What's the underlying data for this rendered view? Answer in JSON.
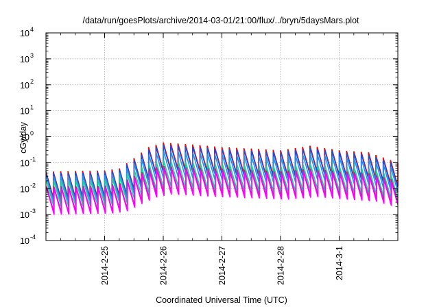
{
  "chart_data": {
    "type": "line",
    "title": "/data/run/goesPlots/archive/2014-03-01/21:00/flux/../bryn/5daysMars.plot",
    "xlabel": "Coordinated Universal Time (UTC)",
    "ylabel": "cGy/day",
    "xlim": [
      "2014-02-24T00:00",
      "2014-03-02T00:00"
    ],
    "ylim": [
      0.0001,
      10000
    ],
    "yscale": "log",
    "grid": true,
    "legend": "none",
    "ytick_labels": [
      {
        "base": "10",
        "exp": "-4"
      },
      {
        "base": "10",
        "exp": "-3"
      },
      {
        "base": "10",
        "exp": "-2"
      },
      {
        "base": "10",
        "exp": "-1"
      },
      {
        "base": "10",
        "exp": "0"
      },
      {
        "base": "10",
        "exp": "1"
      },
      {
        "base": "10",
        "exp": "2"
      },
      {
        "base": "10",
        "exp": "3"
      },
      {
        "base": "10",
        "exp": "4"
      }
    ],
    "xtick_labels": [
      "2014-2-25",
      "2014-2-26",
      "2014-2-27",
      "2014-2-28",
      "2014-3-1"
    ],
    "xticks": [
      "2014-02-25T00:00",
      "2014-02-26T00:00",
      "2014-02-27T00:00",
      "2014-02-28T00:00",
      "2014-03-01T00:00"
    ],
    "sawtooth_period_hours": 3,
    "sawtooth_amplitude_decades": 1.0,
    "envelope_times": [
      "2014-02-24T00:00",
      "2014-02-25T00:00",
      "2014-02-25T06:00",
      "2014-02-25T12:00",
      "2014-02-25T18:00",
      "2014-02-26T00:00",
      "2014-02-26T12:00",
      "2014-02-27T00:00",
      "2014-02-27T12:00",
      "2014-02-28T00:00",
      "2014-02-28T12:00",
      "2014-03-01T00:00",
      "2014-03-01T12:00",
      "2014-03-02T00:00"
    ],
    "series": [
      {
        "color": "#ff0000",
        "peaks": [
          0.045,
          0.05,
          0.06,
          0.15,
          0.4,
          0.6,
          0.5,
          0.4,
          0.35,
          0.3,
          0.45,
          0.3,
          0.25,
          0.1
        ]
      },
      {
        "color": "#1f4fd0",
        "peaks": [
          0.04,
          0.045,
          0.055,
          0.13,
          0.34,
          0.5,
          0.42,
          0.34,
          0.3,
          0.26,
          0.38,
          0.26,
          0.21,
          0.085
        ]
      },
      {
        "color": "#2b8fe6",
        "peaks": [
          0.03,
          0.033,
          0.04,
          0.09,
          0.2,
          0.28,
          0.24,
          0.2,
          0.18,
          0.16,
          0.22,
          0.16,
          0.13,
          0.055
        ]
      },
      {
        "color": "#1fcfa0",
        "peaks": [
          0.02,
          0.022,
          0.028,
          0.05,
          0.09,
          0.12,
          0.1,
          0.09,
          0.08,
          0.07,
          0.09,
          0.07,
          0.06,
          0.03
        ]
      },
      {
        "color": "#c020a0",
        "peaks": [
          0.012,
          0.013,
          0.016,
          0.03,
          0.06,
          0.075,
          0.065,
          0.058,
          0.052,
          0.047,
          0.058,
          0.047,
          0.04,
          0.02
        ]
      },
      {
        "color": "#ff00ff",
        "peaks": [
          0.01,
          0.011,
          0.013,
          0.025,
          0.045,
          0.06,
          0.052,
          0.046,
          0.042,
          0.038,
          0.047,
          0.038,
          0.032,
          0.016
        ]
      }
    ]
  }
}
